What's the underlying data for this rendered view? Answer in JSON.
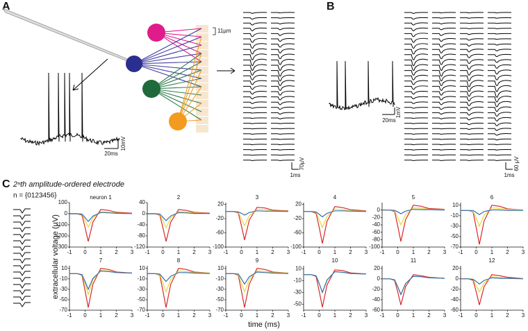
{
  "panel_labels": [
    "A",
    "B",
    "C"
  ],
  "panel_a": {
    "electrode_spacing": "11µm",
    "trace_scale_v": "10mV",
    "trace_scale_t": "20ms",
    "wave_scale_v": "70µV",
    "wave_scale_t": "1ms"
  },
  "panel_b": {
    "trace_scale_v": "1mV",
    "trace_scale_t": "20ms",
    "wave_scale_v": "60 µV",
    "wave_scale_t": "1ms"
  },
  "panel_c": {
    "title": "2ⁿth amplitude-ordered electrode",
    "n_label": "n = {0123456}",
    "y_axis_label": "extracellular voltage (µV)",
    "x_axis_label": "time (ms)"
  },
  "chart_data": [
    {
      "type": "line",
      "title": "neuron 1",
      "x": [
        -1,
        -0.5,
        -0.2,
        0,
        0.2,
        0.5,
        1,
        1.5,
        2,
        3
      ],
      "xlim": [
        -1,
        3
      ],
      "xticks": [
        -1,
        0,
        1,
        2,
        3
      ],
      "ylim": [
        -300,
        100
      ],
      "yticks": [
        100,
        0,
        -100,
        -200,
        -300
      ],
      "series": [
        {
          "color": "#d62728",
          "values": [
            0,
            0,
            -13,
            -125,
            -250,
            -75,
            38,
            30,
            13,
            5
          ]
        },
        {
          "color": "#e8d83a",
          "values": [
            0,
            0,
            -6,
            -60,
            -120,
            -36,
            18,
            14,
            6,
            2
          ]
        },
        {
          "color": "#2f6db5",
          "values": [
            0,
            0,
            -4,
            -35,
            -70,
            -21,
            11,
            8,
            4,
            1
          ]
        }
      ]
    },
    {
      "type": "line",
      "title": "2",
      "x": [
        -1,
        -0.5,
        -0.2,
        0,
        0.2,
        0.5,
        1,
        1.5,
        2,
        3
      ],
      "xlim": [
        -1,
        3
      ],
      "xticks": [
        -1,
        0,
        1,
        2,
        3
      ],
      "ylim": [
        -120,
        40
      ],
      "yticks": [
        40,
        0,
        -40,
        -80,
        -120
      ],
      "series": [
        {
          "color": "#d62728",
          "values": [
            0,
            0,
            -5,
            -50,
            -100,
            -30,
            15,
            12,
            5,
            2
          ]
        },
        {
          "color": "#e8d83a",
          "values": [
            0,
            0,
            -3,
            -25,
            -50,
            -15,
            8,
            6,
            3,
            1
          ]
        },
        {
          "color": "#2f6db5",
          "values": [
            0,
            0,
            -1,
            -13,
            -25,
            -8,
            4,
            3,
            1,
            1
          ]
        }
      ]
    },
    {
      "type": "line",
      "title": "3",
      "x": [
        -1,
        -0.5,
        -0.2,
        0,
        0.2,
        0.5,
        1,
        1.5,
        2,
        3
      ],
      "xlim": [
        -1,
        3
      ],
      "xticks": [
        -1,
        0,
        1,
        2,
        3
      ],
      "ylim": [
        -100,
        25
      ],
      "yticks": [
        20,
        -20,
        -60,
        -100
      ],
      "series": [
        {
          "color": "#d62728",
          "values": [
            0,
            0,
            -4,
            -40,
            -80,
            -24,
            12,
            10,
            4,
            2
          ]
        },
        {
          "color": "#e8d83a",
          "values": [
            0,
            0,
            -2,
            -20,
            -40,
            -12,
            6,
            5,
            2,
            1
          ]
        },
        {
          "color": "#2f6db5",
          "values": [
            0,
            0,
            -1,
            -5,
            -10,
            -3,
            2,
            1,
            1,
            0
          ]
        }
      ]
    },
    {
      "type": "line",
      "title": "4",
      "x": [
        -1,
        -0.5,
        -0.2,
        0,
        0.2,
        0.5,
        1,
        1.5,
        2,
        3
      ],
      "xlim": [
        -1,
        3
      ],
      "xticks": [
        -1,
        0,
        1,
        2,
        3
      ],
      "ylim": [
        -100,
        25
      ],
      "yticks": [
        20,
        -20,
        -60,
        -100
      ],
      "series": [
        {
          "color": "#d62728",
          "values": [
            0,
            0,
            -5,
            -45,
            -90,
            -27,
            14,
            11,
            5,
            2
          ]
        },
        {
          "color": "#e8d83a",
          "values": [
            0,
            0,
            -2,
            -23,
            -45,
            -14,
            7,
            5,
            2,
            1
          ]
        },
        {
          "color": "#2f6db5",
          "values": [
            0,
            0,
            -1,
            -8,
            -15,
            -5,
            2,
            2,
            1,
            0
          ]
        }
      ]
    },
    {
      "type": "line",
      "title": "5",
      "x": [
        -1,
        -0.5,
        -0.2,
        0,
        0.2,
        0.5,
        1,
        1.5,
        2,
        3
      ],
      "xlim": [
        -1,
        3
      ],
      "xticks": [
        -1,
        0,
        1,
        2,
        3
      ],
      "ylim": [
        -100,
        20
      ],
      "yticks": [
        0,
        -20,
        -40,
        -60,
        -80,
        -100
      ],
      "series": [
        {
          "color": "#d62728",
          "values": [
            0,
            0,
            -4,
            -43,
            -85,
            -26,
            13,
            10,
            4,
            2
          ]
        },
        {
          "color": "#e8d83a",
          "values": [
            0,
            0,
            -2,
            -20,
            -40,
            -12,
            6,
            5,
            2,
            1
          ]
        },
        {
          "color": "#2f6db5",
          "values": [
            0,
            0,
            -1,
            -5,
            -10,
            -3,
            2,
            1,
            1,
            0
          ]
        }
      ]
    },
    {
      "type": "line",
      "title": "6",
      "x": [
        -1,
        -0.5,
        -0.2,
        0,
        0.2,
        0.5,
        1,
        1.5,
        2,
        3
      ],
      "xlim": [
        -1,
        3
      ],
      "xticks": [
        -1,
        0,
        1,
        2,
        3
      ],
      "ylim": [
        -70,
        15
      ],
      "yticks": [
        10,
        -10,
        -30,
        -50,
        -70
      ],
      "series": [
        {
          "color": "#d62728",
          "values": [
            0,
            0,
            -3,
            -33,
            -65,
            -20,
            10,
            8,
            3,
            1
          ]
        },
        {
          "color": "#e8d83a",
          "values": [
            0,
            0,
            -2,
            -15,
            -30,
            -9,
            5,
            4,
            2,
            1
          ]
        },
        {
          "color": "#2f6db5",
          "values": [
            0,
            0,
            0,
            -4,
            -8,
            -2,
            1,
            1,
            0,
            0
          ]
        }
      ]
    },
    {
      "type": "line",
      "title": "7",
      "x": [
        -1,
        -0.5,
        -0.2,
        0,
        0.2,
        0.5,
        1,
        1.5,
        2,
        3
      ],
      "xlim": [
        -1,
        3
      ],
      "xticks": [
        -1,
        0,
        1,
        2,
        3
      ],
      "ylim": [
        -70,
        15
      ],
      "yticks": [
        10,
        -10,
        -30,
        -50,
        -70
      ],
      "series": [
        {
          "color": "#d62728",
          "values": [
            0,
            0,
            -3,
            -33,
            -65,
            -20,
            10,
            8,
            3,
            1
          ]
        },
        {
          "color": "#e8d83a",
          "values": [
            0,
            0,
            -2,
            -20,
            -40,
            -12,
            6,
            5,
            2,
            1
          ]
        },
        {
          "color": "#2f6db5",
          "values": [
            0,
            0,
            -2,
            -15,
            -30,
            -9,
            5,
            4,
            2,
            1
          ]
        }
      ]
    },
    {
      "type": "line",
      "title": "8",
      "x": [
        -1,
        -0.5,
        -0.2,
        0,
        0.2,
        0.5,
        1,
        1.5,
        2,
        3
      ],
      "xlim": [
        -1,
        3
      ],
      "xticks": [
        -1,
        0,
        1,
        2,
        3
      ],
      "ylim": [
        -70,
        15
      ],
      "yticks": [
        10,
        -10,
        -30,
        -50,
        -70
      ],
      "series": [
        {
          "color": "#d62728",
          "values": [
            0,
            0,
            -3,
            -33,
            -65,
            -20,
            10,
            8,
            3,
            1
          ]
        },
        {
          "color": "#e8d83a",
          "values": [
            0,
            0,
            -2,
            -18,
            -35,
            -11,
            5,
            4,
            2,
            1
          ]
        },
        {
          "color": "#2f6db5",
          "values": [
            0,
            0,
            -1,
            -8,
            -15,
            -5,
            2,
            2,
            1,
            0
          ]
        }
      ]
    },
    {
      "type": "line",
      "title": "9",
      "x": [
        -1,
        -0.5,
        -0.2,
        0,
        0.2,
        0.5,
        1,
        1.5,
        2,
        3
      ],
      "xlim": [
        -1,
        3
      ],
      "xticks": [
        -1,
        0,
        1,
        2,
        3
      ],
      "ylim": [
        -70,
        15
      ],
      "yticks": [
        10,
        -10,
        -30,
        -50,
        -70
      ],
      "series": [
        {
          "color": "#d62728",
          "values": [
            0,
            0,
            -3,
            -33,
            -65,
            -20,
            10,
            8,
            3,
            1
          ]
        },
        {
          "color": "#e8d83a",
          "values": [
            0,
            0,
            -2,
            -18,
            -35,
            -11,
            5,
            4,
            2,
            1
          ]
        },
        {
          "color": "#2f6db5",
          "values": [
            0,
            0,
            -1,
            -10,
            -20,
            -6,
            3,
            2,
            1,
            0
          ]
        }
      ]
    },
    {
      "type": "line",
      "title": "10",
      "x": [
        -1,
        -0.5,
        -0.2,
        0,
        0.2,
        0.5,
        1,
        1.5,
        2,
        3
      ],
      "xlim": [
        -1,
        3
      ],
      "xticks": [
        -1,
        0,
        1,
        2,
        3
      ],
      "ylim": [
        -60,
        15
      ],
      "yticks": [
        10,
        -10,
        -30,
        -50
      ],
      "series": [
        {
          "color": "#d62728",
          "values": [
            0,
            0,
            -3,
            -28,
            -55,
            -17,
            8,
            7,
            3,
            1
          ]
        },
        {
          "color": "#e8d83a",
          "values": [
            0,
            0,
            -2,
            -15,
            -30,
            -9,
            5,
            4,
            2,
            1
          ]
        },
        {
          "color": "#2f6db5",
          "values": [
            0,
            0,
            -2,
            -15,
            -30,
            -9,
            5,
            4,
            2,
            1
          ]
        }
      ]
    },
    {
      "type": "line",
      "title": "11",
      "x": [
        -1,
        -0.5,
        -0.2,
        0,
        0.2,
        0.5,
        1,
        1.5,
        2,
        3
      ],
      "xlim": [
        -1,
        3
      ],
      "xticks": [
        -1,
        0,
        1,
        2,
        3
      ],
      "ylim": [
        -60,
        25
      ],
      "yticks": [
        20,
        0,
        -20,
        -40,
        -60
      ],
      "series": [
        {
          "color": "#d62728",
          "values": [
            0,
            0,
            -3,
            -25,
            -50,
            -15,
            8,
            6,
            3,
            1
          ]
        },
        {
          "color": "#e8d83a",
          "values": [
            0,
            0,
            -2,
            -15,
            -30,
            -9,
            5,
            4,
            2,
            1
          ]
        },
        {
          "color": "#2f6db5",
          "values": [
            0,
            0,
            -2,
            -15,
            -30,
            -9,
            5,
            4,
            2,
            1
          ]
        }
      ]
    },
    {
      "type": "line",
      "title": "12",
      "x": [
        -1,
        -0.5,
        -0.2,
        0,
        0.2,
        0.5,
        1,
        1.5,
        2,
        3
      ],
      "xlim": [
        -1,
        3
      ],
      "xticks": [
        -1,
        0,
        1,
        2,
        3
      ],
      "ylim": [
        -60,
        25
      ],
      "yticks": [
        20,
        0,
        -20,
        -40,
        -60
      ],
      "series": [
        {
          "color": "#d62728",
          "values": [
            0,
            0,
            -3,
            -25,
            -50,
            -15,
            8,
            6,
            3,
            1
          ]
        },
        {
          "color": "#e8d83a",
          "values": [
            0,
            0,
            -1,
            -13,
            -25,
            -8,
            4,
            3,
            1,
            1
          ]
        },
        {
          "color": "#2f6db5",
          "values": [
            0,
            0,
            -1,
            -5,
            -10,
            -3,
            2,
            1,
            1,
            0
          ]
        }
      ]
    }
  ]
}
